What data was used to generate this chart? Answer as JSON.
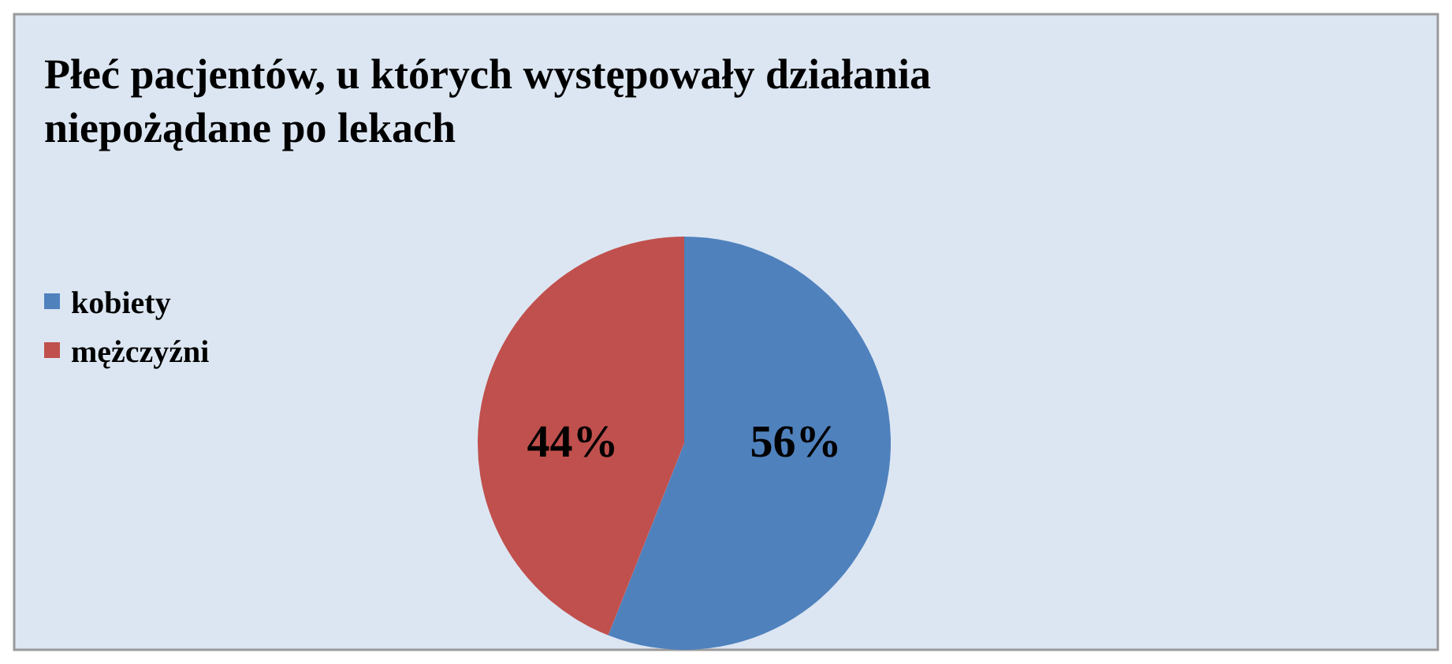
{
  "chart_data": {
    "type": "pie",
    "title": "Płeć pacjentów, u których występowały działania niepożądane po lekach",
    "categories": [
      "kobiety",
      "mężczyźni"
    ],
    "values": [
      56,
      44
    ],
    "colors": [
      "#4f81bd",
      "#c0504d"
    ],
    "value_labels": [
      "56%",
      "44%"
    ],
    "legend": "left"
  }
}
